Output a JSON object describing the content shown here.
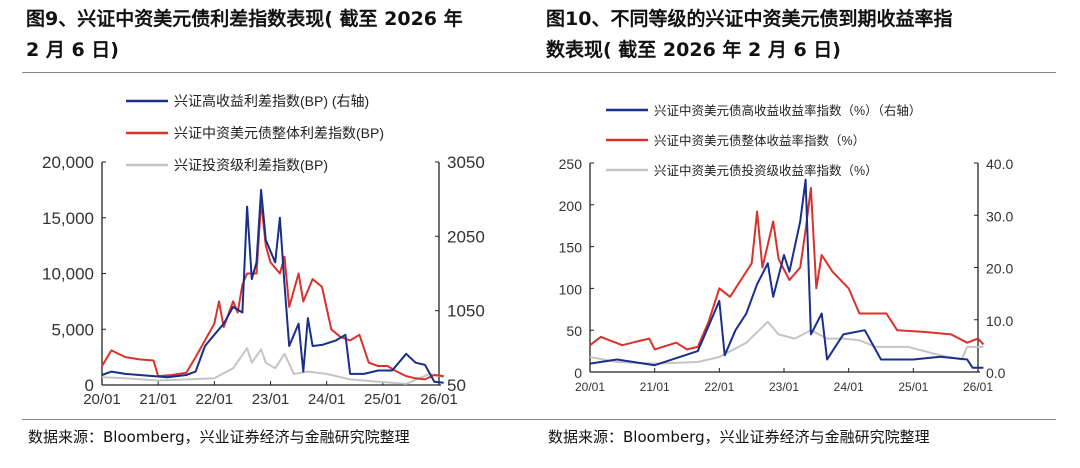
{
  "figures": [
    {
      "title": "图9、兴证中资美元债利差指数表现( 截至2026年2月6日)",
      "title_lines": [
        "图9、兴证中资美元债利差指数表现( 截至 2026 年",
        "2 月 6 日)"
      ],
      "source": "数据来源：Bloomberg，兴业证券经济与金融研究院整理"
    },
    {
      "title": "图10、不同等级的兴证中资美元债到期收益率指数表现( 截至 2026 年 2 月 6 日)",
      "title_lines": [
        "图10、不同等级的兴证中资美元债到期收益率指",
        "数表现( 截至 2026 年 2 月 6 日)"
      ],
      "source": "数据来源：Bloomberg，兴业证券经济与金融研究院整理"
    }
  ],
  "chart_data": [
    {
      "type": "line",
      "xlim": [
        "2020-01",
        "2026-02"
      ],
      "x_ticks": [
        "20/01",
        "21/01",
        "22/01",
        "23/01",
        "24/01",
        "25/01",
        "26/01"
      ],
      "y_left": {
        "lim": [
          0,
          20000
        ],
        "ticks": [
          "0",
          "5,000",
          "10,000",
          "15,000",
          "20,000"
        ]
      },
      "y_right": {
        "lim": [
          50,
          3050
        ],
        "ticks": [
          "50",
          "1050",
          "2050",
          "3050"
        ]
      },
      "legend_placement": "top",
      "grid": false,
      "series": [
        {
          "name": "兴证高收益利差指数(BP) (右轴)",
          "axis": "right",
          "color": "#1a2f8a",
          "x": [
            "2020-01",
            "2020-03",
            "2020-06",
            "2020-12",
            "2021-03",
            "2021-07",
            "2021-09",
            "2021-11",
            "2022-01",
            "2022-03",
            "2022-05",
            "2022-07",
            "2022-08",
            "2022-09",
            "2022-10",
            "2022-11",
            "2022-12",
            "2023-02",
            "2023-03",
            "2023-04",
            "2023-05",
            "2023-07",
            "2023-08",
            "2023-09",
            "2023-10",
            "2023-12",
            "2024-03",
            "2024-05",
            "2024-06",
            "2024-09",
            "2024-12",
            "2025-03",
            "2025-06",
            "2025-08",
            "2025-10",
            "2025-12",
            "2026-02"
          ],
          "y": [
            185,
            230,
            200,
            170,
            155,
            185,
            230,
            575,
            725,
            875,
            1100,
            1025,
            2450,
            1475,
            1700,
            2675,
            2000,
            1700,
            2300,
            1400,
            575,
            875,
            230,
            950,
            575,
            590,
            650,
            725,
            200,
            200,
            245,
            245,
            470,
            350,
            320,
            95,
            80
          ]
        },
        {
          "name": "兴证中资美元债整体利差指数(BP)",
          "axis": "left",
          "color": "#d9312b",
          "x": [
            "2020-01",
            "2020-03",
            "2020-06",
            "2020-09",
            "2020-12",
            "2021-01",
            "2021-04",
            "2021-07",
            "2021-09",
            "2021-11",
            "2022-01",
            "2022-02",
            "2022-03",
            "2022-05",
            "2022-06",
            "2022-07",
            "2022-08",
            "2022-10",
            "2022-11",
            "2022-12",
            "2023-01",
            "2023-03",
            "2023-04",
            "2023-05",
            "2023-07",
            "2023-08",
            "2023-10",
            "2023-12",
            "2024-02",
            "2024-04",
            "2024-06",
            "2024-08",
            "2024-10",
            "2024-12",
            "2025-02",
            "2025-04",
            "2025-06",
            "2025-08",
            "2025-10",
            "2025-12",
            "2026-02"
          ],
          "y": [
            1700,
            3100,
            2500,
            2300,
            2200,
            800,
            900,
            1100,
            2500,
            4000,
            5500,
            7500,
            5200,
            7500,
            6500,
            9000,
            10000,
            10000,
            16500,
            12500,
            11000,
            10000,
            11500,
            7000,
            10000,
            7500,
            9500,
            8800,
            5000,
            4300,
            4000,
            4500,
            2000,
            1700,
            1700,
            1200,
            800,
            600,
            500,
            900,
            800
          ]
        },
        {
          "name": "兴证投资级利差指数(BP)",
          "axis": "left",
          "color": "#c4c4c4",
          "x": [
            "2020-01",
            "2020-06",
            "2021-01",
            "2021-07",
            "2022-01",
            "2022-05",
            "2022-08",
            "2022-09",
            "2022-11",
            "2022-12",
            "2023-02",
            "2023-04",
            "2023-06",
            "2023-09",
            "2024-01",
            "2024-06",
            "2024-12",
            "2025-06",
            "2025-11",
            "2026-02"
          ],
          "y": [
            700,
            600,
            400,
            500,
            600,
            1500,
            3300,
            2000,
            3200,
            2000,
            1500,
            2800,
            1000,
            1200,
            1000,
            500,
            300,
            100,
            1000,
            700
          ]
        }
      ]
    },
    {
      "type": "line",
      "xlim": [
        "2020-01",
        "2026-02"
      ],
      "x_ticks": [
        "20/01",
        "21/01",
        "22/01",
        "23/01",
        "24/01",
        "25/01",
        "26/01"
      ],
      "y_left": {
        "lim": [
          0,
          250
        ],
        "ticks": [
          "0",
          "50",
          "100",
          "150",
          "200",
          "250"
        ]
      },
      "y_right": {
        "lim": [
          0,
          40
        ],
        "ticks": [
          "0.0",
          "10.0",
          "20.0",
          "30.0",
          "40.0"
        ]
      },
      "legend_placement": "top",
      "grid": false,
      "series": [
        {
          "name": "兴证中资美元债高收益收益率指数（%）（右轴）",
          "axis": "right",
          "color": "#1a2f8a",
          "x": [
            "2020-01",
            "2020-06",
            "2021-01",
            "2021-09",
            "2021-11",
            "2022-01",
            "2022-02",
            "2022-04",
            "2022-06",
            "2022-08",
            "2022-10",
            "2022-11",
            "2023-01",
            "2023-02",
            "2023-04",
            "2023-05",
            "2023-06",
            "2023-08",
            "2023-09",
            "2023-10",
            "2023-12",
            "2024-04",
            "2024-07",
            "2025-01",
            "2025-06",
            "2025-11",
            "2025-12",
            "2026-02"
          ],
          "y": [
            1.6,
            2.4,
            1.3,
            4.0,
            8.8,
            13.6,
            3.2,
            8.0,
            11.2,
            16.8,
            20.8,
            14.4,
            22.4,
            19.2,
            28.8,
            36.8,
            7.2,
            11.2,
            2.4,
            4.0,
            7.2,
            8.0,
            2.4,
            2.4,
            2.9,
            2.4,
            0.8,
            0.8
          ]
        },
        {
          "name": "兴证中资美元债整体收益率指数（%）",
          "axis": "left",
          "color": "#d9312b",
          "x": [
            "2020-01",
            "2020-03",
            "2020-07",
            "2020-10",
            "2020-12",
            "2021-01",
            "2021-05",
            "2021-07",
            "2021-09",
            "2021-11",
            "2022-01",
            "2022-03",
            "2022-05",
            "2022-07",
            "2022-08",
            "2022-09",
            "2022-11",
            "2022-12",
            "2023-02",
            "2023-04",
            "2023-05",
            "2023-06",
            "2023-07",
            "2023-08",
            "2023-10",
            "2024-01",
            "2024-03",
            "2024-08",
            "2024-10",
            "2025-03",
            "2025-08",
            "2025-11",
            "2026-01",
            "2026-02"
          ],
          "y": [
            32,
            42,
            32,
            37,
            40,
            27,
            35,
            27,
            30,
            60,
            100,
            90,
            110,
            130,
            192,
            125,
            180,
            135,
            110,
            125,
            170,
            220,
            100,
            140,
            120,
            100,
            70,
            70,
            50,
            48,
            45,
            35,
            40,
            33
          ]
        },
        {
          "name": "兴证中资美元债投资级收益率指数（%）",
          "axis": "left",
          "color": "#c4c4c4",
          "x": [
            "2020-01",
            "2020-06",
            "2021-01",
            "2021-09",
            "2022-01",
            "2022-06",
            "2022-10",
            "2022-12",
            "2023-03",
            "2023-06",
            "2023-09",
            "2023-12",
            "2024-03",
            "2024-06",
            "2024-12",
            "2025-06",
            "2025-10",
            "2025-11",
            "2026-02"
          ],
          "y": [
            18,
            12,
            10,
            12,
            18,
            35,
            60,
            45,
            40,
            50,
            40,
            40,
            38,
            30,
            30,
            20,
            15,
            30,
            30
          ]
        }
      ]
    }
  ]
}
